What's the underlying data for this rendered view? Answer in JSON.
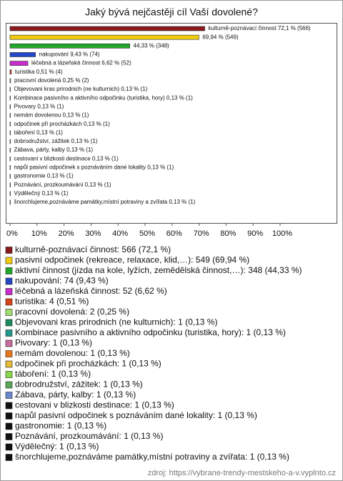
{
  "chart_data": {
    "type": "hbar",
    "title": "Jaký bývá nejčastěji cíl Vaší dovolené?",
    "values": [
      72.1,
      69.94,
      44.33,
      9.43,
      6.62,
      0.51,
      0.25,
      0.13,
      0.13,
      0.13,
      0.13,
      0.13,
      0.13,
      0.13,
      0.13,
      0.13,
      0.13,
      0.13,
      0.13,
      0.13,
      0.13
    ],
    "value_labels": [
      "kulturně-poznávací činnost 72,1 % (566)",
      "69,94 % (549)",
      "44,33 % (348)",
      "nakupování 9,43 % (74)",
      "léčebná a lázeňská činnost 6,62 % (52)",
      "turistika 0,51 % (4)",
      "pracovní dovolená 0,25 % (2)",
      "Objevovani kras prirodnich (ne kulturnich) 0,13 % (1)",
      "Kombinace pasivního a aktivního odpočinku (turistika, hory) 0,13 % (1)",
      "Pivovary 0,13 % (1)",
      "nemám dovolenou 0,13 % (1)",
      "odpočinek při procházkách 0,13 % (1)",
      "táboření 0,13 % (1)",
      "dobrodružství, zážitek 0,13 % (1)",
      "Zábava, párty, kalby 0,13 % (1)",
      "cestovani v blizkosti destinace 0,13 % (1)",
      "napůl pasivní odpočinek s poznáváním dané lokality 0,13 % (1)",
      "gastronomie 0,13 % (1)",
      "Poznávání, prozkoumávání 0,13 % (1)",
      "Výdělečný 0,13 % (1)",
      "šnorchlujeme,poznáváme památky,místní potraviny a zvířata 0,13 % (1)"
    ],
    "legend_labels": [
      "kulturně-poznávací činnost: 566 (72,1 %)",
      "pasivní odpočinek (rekreace, relaxace, klid,…): 549 (69,94 %)",
      "aktivní činnost (jízda na kole, lyžích, zemědělská činnost,…): 348 (44,33 %)",
      "nakupování: 74 (9,43 %)",
      "léčebná a lázeňská činnost: 52 (6,62 %)",
      "turistika: 4 (0,51 %)",
      "pracovní dovolená: 2 (0,25 %)",
      "Objevovani kras prirodnich (ne kulturnich): 1 (0,13 %)",
      "Kombinace pasivního a aktivního odpočinku (turistika, hory): 1 (0,13 %)",
      "Pivovary: 1 (0,13 %)",
      "nemám dovolenou: 1 (0,13 %)",
      "odpočinek při procházkách: 1 (0,13 %)",
      "táboření: 1 (0,13 %)",
      "dobrodružství, zážitek: 1 (0,13 %)",
      "Zábava, párty, kalby: 1 (0,13 %)",
      "cestovani v blizkosti destinace: 1 (0,13 %)",
      "napůl pasivní odpočinek s poznáváním dané lokality: 1 (0,13 %)",
      "gastronomie: 1 (0,13 %)",
      "Poznávání, prozkoumávání: 1 (0,13 %)",
      "Výdělečný: 1 (0,13 %)",
      "šnorchlujeme,poznáváme památky,místní potraviny a zvířata: 1 (0,13 %)"
    ],
    "colors": [
      "#8b1a1a",
      "#f2cc0c",
      "#22a82a",
      "#2448c8",
      "#c82ccc",
      "#d8441a",
      "#a0dc70",
      "#1f8a5e",
      "#23998e",
      "#c86c9c",
      "#e8761a",
      "#e8b83a",
      "#88d84a",
      "#58a858",
      "#6a88cc",
      "#111111",
      "#111111",
      "#111111",
      "#111111",
      "#111111",
      "#111111"
    ],
    "xlim": [
      0,
      100
    ],
    "xticks": [
      {
        "value": 0,
        "label": "0%"
      },
      {
        "value": 10,
        "label": "10%"
      },
      {
        "value": 20,
        "label": "20%"
      },
      {
        "value": 30,
        "label": "30%"
      },
      {
        "value": 40,
        "label": "40%"
      },
      {
        "value": 50,
        "label": "50%"
      },
      {
        "value": 60,
        "label": "60%"
      },
      {
        "value": 70,
        "label": "70%"
      },
      {
        "value": 80,
        "label": "80%"
      },
      {
        "value": 90,
        "label": "90%"
      },
      {
        "value": 100,
        "label": "100%"
      }
    ],
    "source": "zdroj: https://vybrane-trendy-mestskeho-a-v.vyplnto.cz"
  }
}
